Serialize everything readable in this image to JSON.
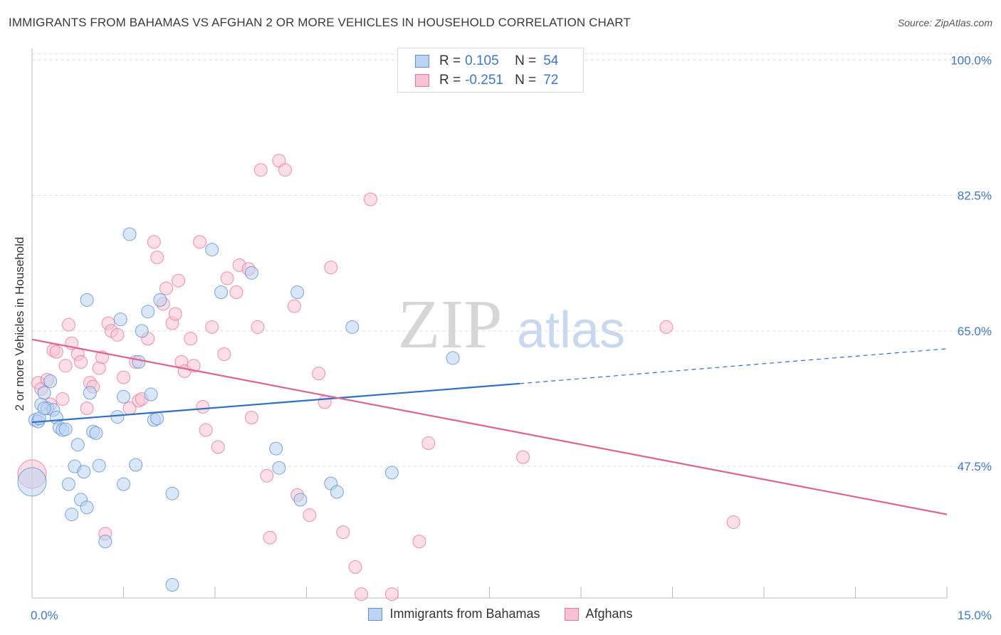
{
  "title": "IMMIGRANTS FROM BAHAMAS VS AFGHAN 2 OR MORE VEHICLES IN HOUSEHOLD CORRELATION CHART",
  "source": "Source: ZipAtlas.com",
  "watermark": {
    "zip": "ZIP",
    "atlas": "atlas"
  },
  "legend_top": {
    "rows": [
      {
        "r_label": "R =",
        "r_value": "0.105",
        "n_label": "N =",
        "n_value": "54"
      },
      {
        "r_label": "R =",
        "r_value": "-0.251",
        "n_label": "N =",
        "n_value": "72"
      }
    ]
  },
  "chart_data": {
    "type": "scatter",
    "title": "IMMIGRANTS FROM BAHAMAS VS AFGHAN 2 OR MORE VEHICLES IN HOUSEHOLD CORRELATION CHART",
    "xlabel": "",
    "ylabel": "2 or more Vehicles in Household",
    "xlim": [
      0,
      15
    ],
    "ylim": [
      30.5,
      101.5
    ],
    "x_tick_labels": [
      "0.0%",
      "15.0%"
    ],
    "y_ticks": [
      47.5,
      65.0,
      82.5,
      100.0
    ],
    "y_tick_labels": [
      "47.5%",
      "65.0%",
      "82.5%",
      "100.0%"
    ],
    "grid": true,
    "legend_position": "bottom",
    "colors": {
      "bahamas": "#5b8fd6",
      "afghans": "#e8759c",
      "bahamas_fill": "#bcd3f2",
      "afghans_fill": "#f7c3d4"
    },
    "series": [
      {
        "name": "Immigrants from Bahamas",
        "color": "#5b8fd6",
        "trend": {
          "x": [
            0,
            8.0
          ],
          "y": [
            53.2,
            58.2
          ],
          "dashed_to": [
            15,
            62.7
          ]
        },
        "points": [
          [
            0.0,
            45.5
          ],
          [
            0.05,
            53.5
          ],
          [
            0.1,
            53.3
          ],
          [
            0.15,
            55.5
          ],
          [
            0.2,
            57.0
          ],
          [
            0.25,
            55.0
          ],
          [
            0.3,
            58.5
          ],
          [
            0.35,
            54.8
          ],
          [
            0.4,
            53.8
          ],
          [
            0.45,
            52.5
          ],
          [
            0.5,
            52.2
          ],
          [
            0.55,
            52.3
          ],
          [
            0.6,
            45.2
          ],
          [
            0.7,
            47.5
          ],
          [
            0.75,
            50.3
          ],
          [
            0.8,
            43.2
          ],
          [
            0.85,
            46.8
          ],
          [
            0.65,
            41.3
          ],
          [
            0.9,
            42.2
          ],
          [
            0.95,
            57.0
          ],
          [
            1.0,
            52.0
          ],
          [
            1.05,
            51.8
          ],
          [
            1.1,
            47.6
          ],
          [
            1.2,
            37.8
          ],
          [
            1.4,
            53.9
          ],
          [
            1.45,
            66.5
          ],
          [
            1.5,
            56.5
          ],
          [
            1.6,
            77.5
          ],
          [
            1.7,
            47.7
          ],
          [
            1.75,
            61.0
          ],
          [
            1.8,
            65.0
          ],
          [
            1.9,
            67.5
          ],
          [
            1.95,
            56.8
          ],
          [
            2.0,
            53.5
          ],
          [
            2.05,
            53.7
          ],
          [
            2.1,
            69.0
          ],
          [
            2.3,
            32.2
          ],
          [
            2.3,
            44.0
          ],
          [
            0.9,
            69.0
          ],
          [
            2.95,
            75.5
          ],
          [
            3.1,
            70.0
          ],
          [
            3.6,
            72.5
          ],
          [
            4.0,
            49.8
          ],
          [
            4.05,
            47.3
          ],
          [
            4.35,
            70.0
          ],
          [
            4.4,
            43.2
          ],
          [
            4.9,
            45.3
          ],
          [
            5.0,
            44.2
          ],
          [
            5.25,
            65.5
          ],
          [
            5.9,
            46.7
          ],
          [
            6.9,
            61.5
          ],
          [
            0.12,
            53.7
          ],
          [
            0.2,
            55.0
          ],
          [
            1.5,
            45.2
          ]
        ]
      },
      {
        "name": "Afghans",
        "color": "#e8759c",
        "trend": {
          "x": [
            0,
            15
          ],
          "y": [
            63.9,
            41.3
          ]
        },
        "points": [
          [
            0.0,
            46.5
          ],
          [
            0.1,
            58.3
          ],
          [
            0.15,
            57.5
          ],
          [
            0.25,
            58.7
          ],
          [
            0.3,
            55.5
          ],
          [
            0.35,
            62.5
          ],
          [
            0.4,
            62.3
          ],
          [
            0.5,
            56.2
          ],
          [
            0.55,
            60.5
          ],
          [
            0.6,
            65.8
          ],
          [
            0.65,
            63.4
          ],
          [
            0.75,
            62.0
          ],
          [
            0.8,
            61.0
          ],
          [
            0.9,
            55.0
          ],
          [
            0.95,
            58.3
          ],
          [
            1.0,
            57.8
          ],
          [
            1.1,
            60.2
          ],
          [
            1.15,
            61.6
          ],
          [
            1.25,
            66.0
          ],
          [
            1.3,
            65.0
          ],
          [
            1.4,
            64.5
          ],
          [
            1.5,
            59.0
          ],
          [
            1.6,
            55.0
          ],
          [
            1.7,
            61.0
          ],
          [
            1.75,
            56.0
          ],
          [
            1.8,
            56.2
          ],
          [
            1.9,
            64.0
          ],
          [
            2.0,
            76.5
          ],
          [
            2.05,
            74.5
          ],
          [
            2.15,
            68.5
          ],
          [
            2.2,
            70.5
          ],
          [
            2.3,
            66.0
          ],
          [
            2.35,
            67.2
          ],
          [
            2.4,
            71.5
          ],
          [
            2.45,
            61.0
          ],
          [
            2.5,
            59.8
          ],
          [
            2.6,
            64.0
          ],
          [
            2.65,
            60.5
          ],
          [
            2.75,
            76.5
          ],
          [
            2.8,
            55.2
          ],
          [
            2.85,
            52.2
          ],
          [
            2.95,
            65.5
          ],
          [
            3.05,
            50.0
          ],
          [
            3.15,
            62.0
          ],
          [
            3.2,
            71.8
          ],
          [
            3.35,
            70.0
          ],
          [
            3.4,
            73.5
          ],
          [
            3.55,
            73.0
          ],
          [
            3.6,
            53.8
          ],
          [
            3.7,
            65.5
          ],
          [
            3.75,
            85.8
          ],
          [
            3.85,
            46.3
          ],
          [
            3.9,
            38.3
          ],
          [
            4.05,
            87.0
          ],
          [
            4.15,
            85.8
          ],
          [
            4.3,
            68.2
          ],
          [
            4.35,
            43.8
          ],
          [
            4.55,
            41.2
          ],
          [
            4.7,
            59.5
          ],
          [
            4.8,
            55.8
          ],
          [
            4.9,
            73.2
          ],
          [
            5.1,
            39.0
          ],
          [
            5.3,
            34.5
          ],
          [
            5.4,
            31.0
          ],
          [
            5.55,
            82.0
          ],
          [
            5.9,
            31.0
          ],
          [
            6.35,
            37.8
          ],
          [
            6.5,
            50.5
          ],
          [
            8.05,
            48.7
          ],
          [
            10.4,
            65.5
          ],
          [
            11.5,
            40.3
          ],
          [
            1.2,
            38.8
          ]
        ]
      }
    ]
  },
  "legend_bottom": [
    {
      "label": "Immigrants from Bahamas"
    },
    {
      "label": "Afghans"
    }
  ]
}
